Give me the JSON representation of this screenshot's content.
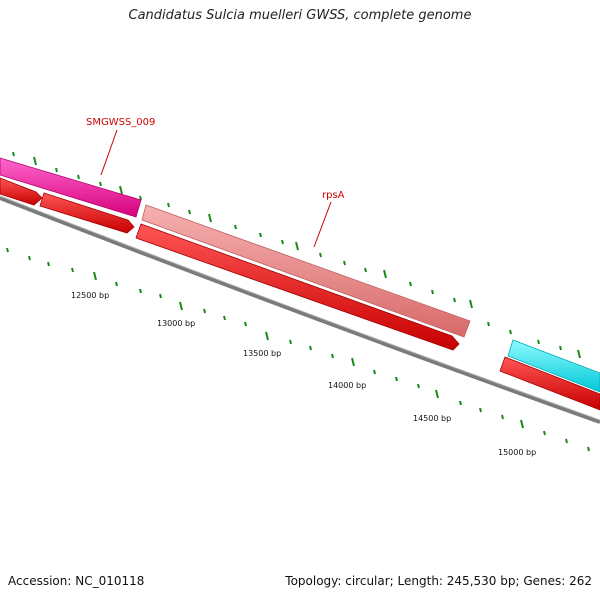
{
  "title": "Candidatus Sulcia muelleri GWSS, complete genome",
  "footer": {
    "accession": "Accession: NC_010118",
    "summary": "Topology: circular; Length: 245,530 bp; Genes: 262"
  },
  "gene_labels": {
    "smgwss_009": "SMGWSS_009",
    "rpsa": "rpsA"
  },
  "ticks": [
    "12500 bp",
    "13000 bp",
    "13500 bp",
    "14000 bp",
    "14500 bp",
    "15000 bp"
  ],
  "colors": {
    "magenta": "#ff1aa8",
    "salmon": "#ef8a8a",
    "cyan": "#10f0f0",
    "red": "#ff0000",
    "backbone": "#808080",
    "tick": "#1a8a1a",
    "label": "#cc0000"
  }
}
